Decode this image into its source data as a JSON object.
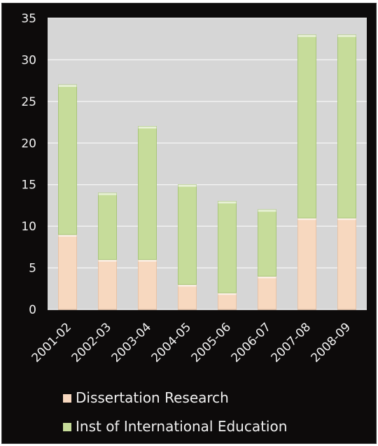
{
  "chart_data": {
    "type": "bar",
    "stacked": true,
    "categories": [
      "2001-02",
      "2002-03",
      "2003-04",
      "2004-05",
      "2005-06",
      "2006-07",
      "2007-08",
      "2008-09"
    ],
    "series": [
      {
        "name": "Dissertation Research",
        "color": "#f7d8bf",
        "values": [
          9,
          6,
          6,
          3,
          2,
          4,
          11,
          11
        ]
      },
      {
        "name": "Inst of International Education",
        "color": "#c6dc9a",
        "values": [
          18,
          8,
          16,
          12,
          11,
          8,
          22,
          22
        ]
      }
    ],
    "ylim": [
      0,
      35
    ],
    "yticks": [
      0,
      5,
      10,
      15,
      20,
      25,
      30,
      35
    ],
    "grid": true,
    "legend_position": "bottom",
    "colors": {
      "background": "#0d0b0b",
      "plot_area": "#d6d6d6",
      "gridline": "#f2f2f2",
      "text": "#f2f2f2"
    }
  }
}
